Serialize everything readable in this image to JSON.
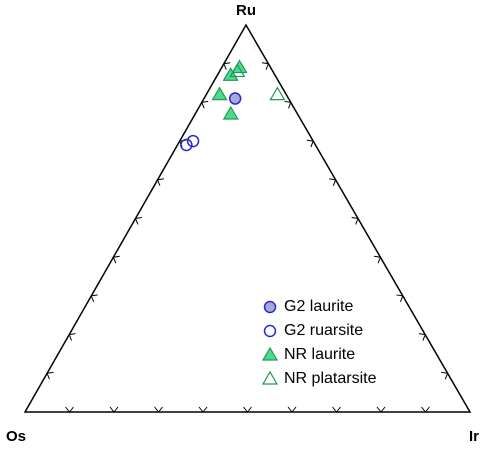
{
  "chart_data": {
    "type": "ternary",
    "top_label": "Ru",
    "left_label": "Os",
    "right_label": "Ir",
    "ticks": [
      10,
      20,
      30,
      40,
      50,
      60,
      70,
      80,
      90
    ],
    "legend": "lower right",
    "series": [
      {
        "name": "G2 laurite",
        "marker": "circle",
        "filled": true,
        "color": "#2a2acc",
        "fill_color": "#a8a8dc",
        "ru": [
          81
        ],
        "os": [
          12
        ],
        "ir": [
          7
        ]
      },
      {
        "name": "G2 ruarsite",
        "marker": "circle",
        "filled": false,
        "color": "#2a2acc",
        "fill_color": "#ffffff",
        "ru": [
          69,
          70
        ],
        "os": [
          29,
          27
        ],
        "ir": [
          2,
          3
        ]
      },
      {
        "name": "NR laurite",
        "marker": "triangle",
        "filled": true,
        "color": "#1f9a55",
        "fill_color": "#4fd98f",
        "ru": [
          89,
          87,
          82,
          77
        ],
        "os": [
          7,
          10,
          15,
          15
        ],
        "ir": [
          4,
          3,
          3,
          8
        ]
      },
      {
        "name": "NR platarsite",
        "marker": "triangle",
        "filled": false,
        "color": "#1f9a55",
        "fill_color": "#ffffff",
        "ru": [
          82,
          88
        ],
        "os": [
          2,
          8
        ],
        "ir": [
          16,
          4
        ]
      }
    ]
  }
}
